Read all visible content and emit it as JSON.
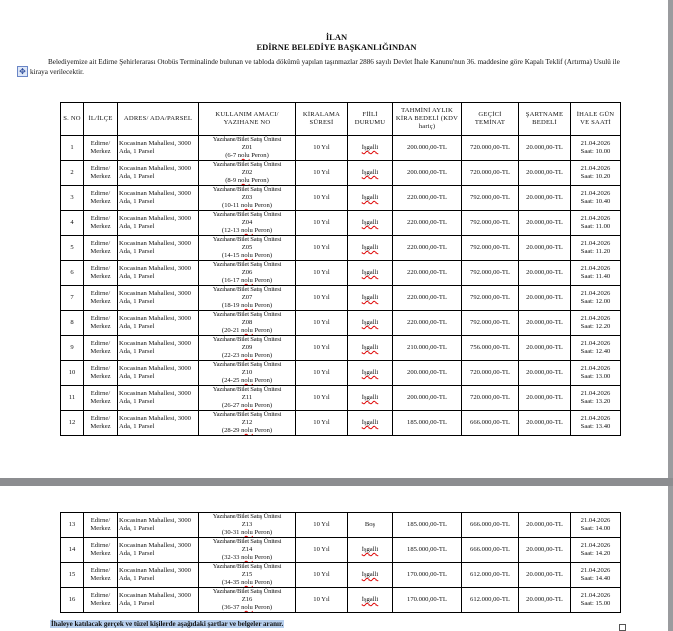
{
  "document": {
    "title": "İLAN",
    "subtitle": "EDİRNE BELEDİYE  BAŞKANLIĞINDAN",
    "intro": "Belediyemize ait Edirne Şehirlerarası Otobüs Terminalinde bulunan ve tabloda dökümü yapılan taşınmazlar 2886 sayılı Devlet İhale Kanunu'nun 36. maddesine göre Kapalı Teklif (Artırma) Usulü ile kiraya verilecektir.",
    "footer": "İhaleye katılacak gerçek ve tüzel kişilerde aşağıdaki şartlar ve belgeler aranır."
  },
  "table": {
    "headers": [
      "S. NO",
      "İL/İLÇE",
      "ADRES/ ADA/PARSEL",
      "KULLANIM AMACI/ YAZIHANE NO",
      "KİRALAMA SÜRESİ",
      "FİİLİ DURUMU",
      "TAHMİNİ AYLIK KİRA BEDELİ (KDV hariç)",
      "GEÇİCİ TEMİNAT",
      "ŞARTNAME BEDELİ",
      "İHALE GÜN VE SAATİ"
    ],
    "rows": [
      {
        "no": "1",
        "il": "Edirne/ Merkez",
        "adres": "Kocasinan Mahallesi, 3000 Ada, 1 Parsel",
        "amac": "Yazıhane/Bilet Satış Ünitesi",
        "kod": "Z01",
        "peron": "(6-7 nolu Peron)",
        "sure": "10 Yıl",
        "durum": "İşgalli",
        "kira": "200.000,00-TL",
        "teminat": "720.000,00-TL",
        "sartname": "20.000,00-TL",
        "tarih": "21.04.2026",
        "saat": "Saat: 10.00"
      },
      {
        "no": "2",
        "il": "Edirne/ Merkez",
        "adres": "Kocasinan Mahallesi, 3000 Ada, 1 Parsel",
        "amac": "Yazıhane/Bilet Satış Ünitesi",
        "kod": "Z02",
        "peron": "(8-9 nolu Peron)",
        "sure": "10 Yıl",
        "durum": "İşgalli",
        "kira": "200.000,00-TL",
        "teminat": "720.000,00-TL",
        "sartname": "20.000,00-TL",
        "tarih": "21.04.2026",
        "saat": "Saat: 10.20"
      },
      {
        "no": "3",
        "il": "Edirne/ Merkez",
        "adres": "Kocasinan Mahallesi, 3000 Ada, 1 Parsel",
        "amac": "Yazıhane/Bilet Satış Ünitesi",
        "kod": "Z03",
        "peron": "(10-11 nolu Peron)",
        "sure": "10 Yıl",
        "durum": "İşgalli",
        "kira": "220.000,00-TL",
        "teminat": "792.000,00-TL",
        "sartname": "20.000,00-TL",
        "tarih": "21.04.2026",
        "saat": "Saat: 10.40"
      },
      {
        "no": "4",
        "il": "Edirne/ Merkez",
        "adres": "Kocasinan Mahallesi, 3000 Ada, 1 Parsel",
        "amac": "Yazıhane/Bilet Satış Ünitesi",
        "kod": "Z04",
        "peron": "(12-13 nolu Peron)",
        "sure": "10 Yıl",
        "durum": "İşgalli",
        "kira": "220.000,00-TL",
        "teminat": "792.000,00-TL",
        "sartname": "20.000,00-TL",
        "tarih": "21.04.2026",
        "saat": "Saat: 11.00"
      },
      {
        "no": "5",
        "il": "Edirne/ Merkez",
        "adres": "Kocasinan Mahallesi, 3000 Ada, 1 Parsel",
        "amac": "Yazıhane/Bilet Satış Ünitesi",
        "kod": "Z05",
        "peron": "(14-15 nolu Peron)",
        "sure": "10 Yıl",
        "durum": "İşgalli",
        "kira": "220.000,00-TL",
        "teminat": "792.000,00-TL",
        "sartname": "20.000,00-TL",
        "tarih": "21.04.2026",
        "saat": "Saat: 11.20"
      },
      {
        "no": "6",
        "il": "Edirne/ Merkez",
        "adres": "Kocasinan Mahallesi, 3000 Ada, 1 Parsel",
        "amac": "Yazıhane/Bilet Satış Ünitesi",
        "kod": "Z06",
        "peron": "(16-17 nolu Peron)",
        "sure": "10 Yıl",
        "durum": "İşgalli",
        "kira": "220.000,00-TL",
        "teminat": "792.000,00-TL",
        "sartname": "20.000,00-TL",
        "tarih": "21.04.2026",
        "saat": "Saat: 11.40"
      },
      {
        "no": "7",
        "il": "Edirne/ Merkez",
        "adres": "Kocasinan Mahallesi, 3000 Ada, 1 Parsel",
        "amac": "Yazıhane/Bilet Satış Ünitesi",
        "kod": "Z07",
        "peron": "(18-19 nolu Peron)",
        "sure": "10 Yıl",
        "durum": "İşgalli",
        "kira": "220.000,00-TL",
        "teminat": "792.000,00-TL",
        "sartname": "20.000,00-TL",
        "tarih": "21.04.2026",
        "saat": "Saat: 12.00"
      },
      {
        "no": "8",
        "il": "Edirne/ Merkez",
        "adres": "Kocasinan Mahallesi, 3000 Ada, 1 Parsel",
        "amac": "Yazıhane/Bilet Satış Ünitesi",
        "kod": "Z08",
        "peron": "(20-21 nolu Peron)",
        "sure": "10 Yıl",
        "durum": "İşgalli",
        "kira": "220.000,00-TL",
        "teminat": "792.000,00-TL",
        "sartname": "20.000,00-TL",
        "tarih": "21.04.2026",
        "saat": "Saat: 12.20"
      },
      {
        "no": "9",
        "il": "Edirne/ Merkez",
        "adres": "Kocasinan Mahallesi, 3000 Ada, 1 Parsel",
        "amac": "Yazıhane/Bilet Satış Ünitesi",
        "kod": "Z09",
        "peron": "(22-23 nolu Peron)",
        "sure": "10 Yıl",
        "durum": "İşgalli",
        "kira": "210.000,00-TL",
        "teminat": "756.000,00-TL",
        "sartname": "20.000,00-TL",
        "tarih": "21.04.2026",
        "saat": "Saat: 12.40"
      },
      {
        "no": "10",
        "il": "Edirne/ Merkez",
        "adres": "Kocasinan Mahallesi, 3000 Ada, 1 Parsel",
        "amac": "Yazıhane/Bilet Satış Ünitesi",
        "kod": "Z10",
        "peron": "(24-25 nolu Peron)",
        "sure": "10 Yıl",
        "durum": "İşgalli",
        "kira": "200.000,00-TL",
        "teminat": "720.000,00-TL",
        "sartname": "20.000,00-TL",
        "tarih": "21.04.2026",
        "saat": "Saat: 13.00"
      },
      {
        "no": "11",
        "il": "Edirne/ Merkez",
        "adres": "Kocasinan Mahallesi, 3000 Ada, 1 Parsel",
        "amac": "Yazıhane/Bilet Satış Ünitesi",
        "kod": "Z11",
        "peron": "(26-27 nolu Peron)",
        "sure": "10 Yıl",
        "durum": "İşgalli",
        "kira": "200.000,00-TL",
        "teminat": "720.000,00-TL",
        "sartname": "20.000,00-TL",
        "tarih": "21.04.2026",
        "saat": "Saat: 13.20"
      },
      {
        "no": "12",
        "il": "Edirne/ Merkez",
        "adres": "Kocasinan Mahallesi, 3000 Ada, 1 Parsel",
        "amac": "Yazıhane/Bilet Satış Ünitesi",
        "kod": "Z12",
        "peron": "(28-29 nolu Peron)",
        "sure": "10 Yıl",
        "durum": "İşgalli",
        "kira": "185.000,00-TL",
        "teminat": "666.000,00-TL",
        "sartname": "20.000,00-TL",
        "tarih": "21.04.2026",
        "saat": "Saat: 13.40"
      },
      {
        "no": "13",
        "il": "Edirne/ Merkez",
        "adres": "Kocasinan Mahallesi, 3000 Ada, 1 Parsel",
        "amac": "Yazıhane/Bilet Satış Ünitesi",
        "kod": "Z13",
        "peron": "(30-31 nolu Peron)",
        "sure": "10 Yıl",
        "durum": "Boş",
        "kira": "185.000,00-TL",
        "teminat": "666.000,00-TL",
        "sartname": "20.000,00-TL",
        "tarih": "21.04.2026",
        "saat": "Saat: 14.00"
      },
      {
        "no": "14",
        "il": "Edirne/ Merkez",
        "adres": "Kocasinan Mahallesi, 3000 Ada, 1 Parsel",
        "amac": "Yazıhane/Bilet Satış Ünitesi",
        "kod": "Z14",
        "peron": "(32-33 nolu Peron)",
        "sure": "10 Yıl",
        "durum": "İşgalli",
        "kira": "185.000,00-TL",
        "teminat": "666.000,00-TL",
        "sartname": "20.000,00-TL",
        "tarih": "21.04.2026",
        "saat": "Saat: 14.20"
      },
      {
        "no": "15",
        "il": "Edirne/ Merkez",
        "adres": "Kocasinan Mahallesi, 3000 Ada, 1 Parsel",
        "amac": "Yazıhane/Bilet Satış Ünitesi",
        "kod": "Z15",
        "peron": "(34-35 nolu Peron)",
        "sure": "10 Yıl",
        "durum": "İşgalli",
        "kira": "170.000,00-TL",
        "teminat": "612.000,00-TL",
        "sartname": "20.000,00-TL",
        "tarih": "21.04.2026",
        "saat": "Saat: 14.40"
      },
      {
        "no": "16",
        "il": "Edirne/ Merkez",
        "adres": "Kocasinan Mahallesi, 3000 Ada, 1 Parsel",
        "amac": "Yazıhane/Bilet Satış Ünitesi",
        "kod": "Z16",
        "peron": "(36-37 nolu Peron)",
        "sure": "10 Yıl",
        "durum": "İşgalli",
        "kira": "170.000,00-TL",
        "teminat": "612.000,00-TL",
        "sartname": "20.000,00-TL",
        "tarih": "21.04.2026",
        "saat": "Saat: 15.00"
      }
    ]
  }
}
